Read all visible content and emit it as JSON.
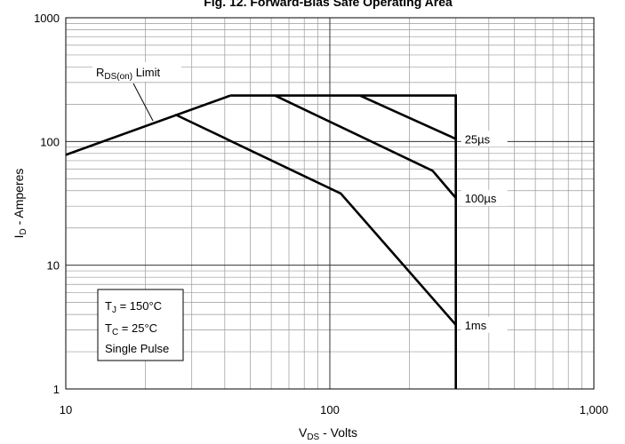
{
  "chart_data": {
    "type": "line",
    "title": "Fig. 12. Forward-Bias Safe Operating Area",
    "xlabel": {
      "main": "V",
      "sub": "DS",
      "rest": " - Volts"
    },
    "ylabel": {
      "main": "I",
      "sub": "D",
      "rest": " - Amperes"
    },
    "x_scale": "log",
    "y_scale": "log",
    "xlim": [
      10,
      1000
    ],
    "ylim": [
      1,
      1000
    ],
    "grid": true,
    "x_ticks": [
      {
        "v": 10,
        "label": "10"
      },
      {
        "v": 100,
        "label": "100"
      },
      {
        "v": 1000,
        "label": "1,000"
      }
    ],
    "y_ticks": [
      {
        "v": 1,
        "label": "1"
      },
      {
        "v": 10,
        "label": "10"
      },
      {
        "v": 100,
        "label": "100"
      },
      {
        "v": 1000,
        "label": "1000"
      }
    ],
    "series": [
      {
        "name": "RDS(on) Limit",
        "x": [
          10,
          42
        ],
        "y": [
          78,
          235
        ]
      },
      {
        "name": "25µs",
        "x": [
          130,
          300,
          300
        ],
        "y": [
          235,
          105,
          235
        ]
      },
      {
        "name": "100µs",
        "x": [
          62,
          245,
          300
        ],
        "y": [
          235,
          58,
          35
        ]
      },
      {
        "name": "1ms",
        "x": [
          26,
          110,
          300
        ],
        "y": [
          165,
          38,
          3.3
        ]
      },
      {
        "name": "",
        "x": [
          42,
          300,
          300
        ],
        "y": [
          235,
          235,
          1
        ]
      }
    ],
    "annotations": {
      "rds_limit": {
        "main": "R",
        "sub": "DS(on)",
        "rest": " Limit"
      },
      "curve_labels": [
        {
          "text": "25µs",
          "x": 300,
          "y": 105
        },
        {
          "text": "100µs",
          "x": 300,
          "y": 35
        },
        {
          "text": "1ms",
          "x": 300,
          "y": 3.3
        }
      ],
      "conditions": [
        {
          "main": "T",
          "sub": "J",
          "rest": " = 150°C"
        },
        {
          "main": "T",
          "sub": "C",
          "rest": " = 25°C"
        },
        {
          "main": "Single Pulse",
          "sub": "",
          "rest": ""
        }
      ]
    }
  }
}
